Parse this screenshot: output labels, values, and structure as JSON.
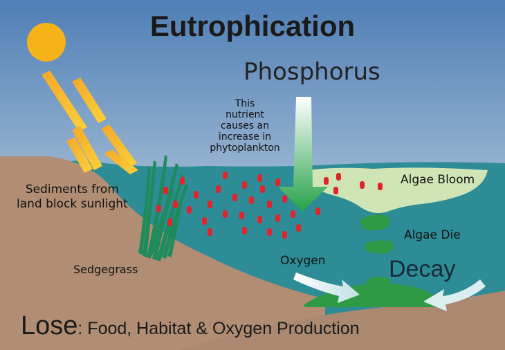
{
  "title": "Eutrophication",
  "labels": {
    "phosphorus": "Phosphorus",
    "nutrient_note": "This\nnutrient\ncauses an\nincrease in\nphytoplankton",
    "sediments": "Sediments from\nland block sunlight",
    "sedgegrass": "Sedgegrass",
    "algae_bloom": "Algae Bloom",
    "algae_die": "Algae Die",
    "oxygen": "Oxygen",
    "decay": "Decay"
  },
  "footer": {
    "lose": "Lose",
    "items": ": Food, Habitat & Oxygen Production"
  },
  "colors": {
    "sky_top": "#4f7fb6",
    "sky_bottom": "#dfe7ee",
    "water": "#2d8c95",
    "land": "#b08d73",
    "sun": "#f6b319",
    "algae_light": "#cfe5b6",
    "algae_green": "#2f9a46",
    "phytoplankton": "#e2232b",
    "grass": "#1f8a5b"
  }
}
